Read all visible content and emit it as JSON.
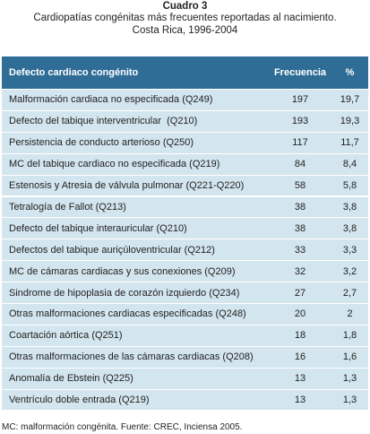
{
  "header": {
    "title": "Cuadro 3",
    "subtitle_lines": [
      "Cardiopatías congénitas más frecuentes reportadas al nacimiento.",
      "Costa Rica, 1996-2004"
    ]
  },
  "table": {
    "columns": [
      "Defecto cardiaco congénito",
      "Frecuencia",
      "%"
    ],
    "rows": [
      [
        "Malformación cardiaca no especificada (Q249)",
        197,
        "19,7"
      ],
      [
        "Defecto del tabique interventricular  (Q210)",
        193,
        "19,3"
      ],
      [
        "Persistencia de conducto arterioso (Q250)",
        117,
        "11,7"
      ],
      [
        "MC del tabique cardiaco no especificada (Q219)",
        84,
        "8,4"
      ],
      [
        "Estenosis y Atresia de válvula pulmonar (Q221-Q220)",
        58,
        "5,8"
      ],
      [
        "Tetralogía de Fallot (Q213)",
        38,
        "3,8"
      ],
      [
        "Defecto del tabique interauricular (Q210)",
        38,
        "3,8"
      ],
      [
        "Defectos del tabique auriçúloventricular (Q212)",
        33,
        "3,3"
      ],
      [
        "MC de cámaras cardiacas y sus conexiones (Q209)",
        32,
        "3,2"
      ],
      [
        "Sindrome de hipoplasia de corazón izquierdo (Q234)",
        27,
        "2,7"
      ],
      [
        "Otras malformaciones cardiacas especificadas (Q248)",
        20,
        "2"
      ],
      [
        "Coartación aórtica (Q251)",
        18,
        "1,8"
      ],
      [
        "Otras malformaciones de las cámaras cardiacas (Q208)",
        16,
        "1,6"
      ],
      [
        "Anomalía de Ebstein (Q225)",
        13,
        "1,3"
      ],
      [
        "Ventrículo doble entrada (Q219)",
        13,
        "1,3"
      ]
    ]
  },
  "footnote": "MC: malformación congénita. Fuente:  CREC, Inciensa 2005."
}
